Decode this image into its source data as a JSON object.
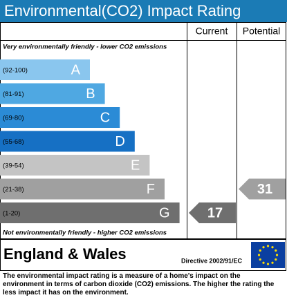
{
  "title": "Environmental(CO2) Impact Rating",
  "headers": {
    "current": "Current",
    "potential": "Potential"
  },
  "top_note": "Very environmentally friendly - lower CO2 emissions",
  "bands": [
    {
      "range": "(92-100)",
      "letter": "A",
      "color": "#8ac6ee"
    },
    {
      "range": "(81-91)",
      "letter": "B",
      "color": "#4fa8e2"
    },
    {
      "range": "(69-80)",
      "letter": "C",
      "color": "#2b8bd6"
    },
    {
      "range": "(55-68)",
      "letter": "D",
      "color": "#1670c4"
    },
    {
      "range": "(39-54)",
      "letter": "E",
      "color": "#c4c4c4"
    },
    {
      "range": "(21-38)",
      "letter": "F",
      "color": "#a0a0a0"
    },
    {
      "range": "(1-20)",
      "letter": "G",
      "color": "#6f6f6f"
    }
  ],
  "bottom_note": "Not environmentally friendly - higher CO2 emissions",
  "current": 17,
  "potential": 31,
  "footer": {
    "region": "England & Wales",
    "directive": "Directive 2002/91/EC"
  },
  "description": "The environmental impact rating is a measure of a home's impact on the environment in terms of carbon dioxide (CO2) emissions. The higher the rating the less impact it has on the environment."
}
